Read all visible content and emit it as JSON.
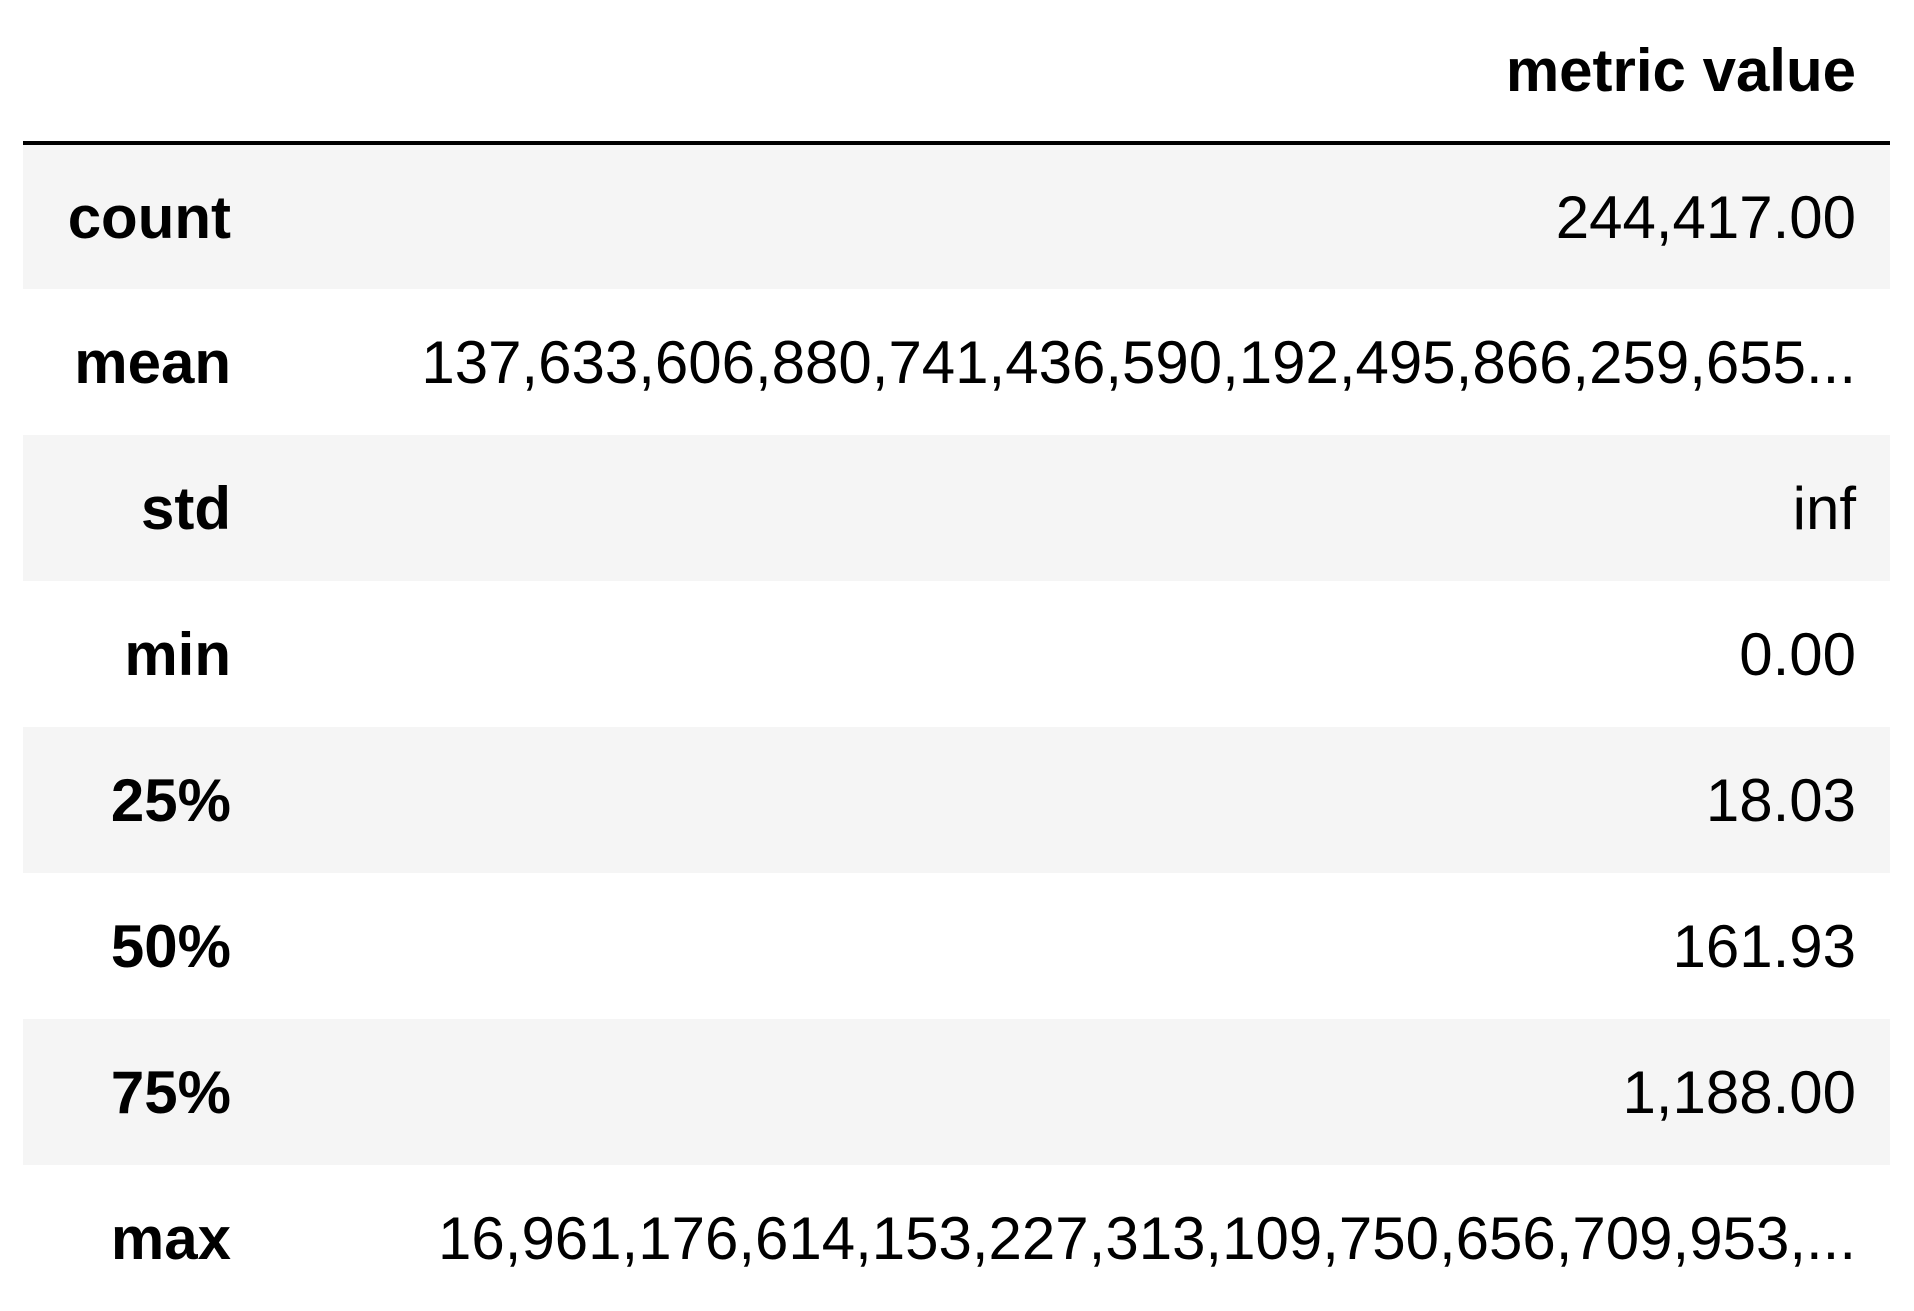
{
  "table": {
    "columns": [
      "",
      "metric value"
    ],
    "rows": [
      {
        "label": "count",
        "value": "244,417.00"
      },
      {
        "label": "mean",
        "value": "137,633,606,880,741,436,590,192,495,866,259,655..."
      },
      {
        "label": "std",
        "value": "inf"
      },
      {
        "label": "min",
        "value": "0.00"
      },
      {
        "label": "25%",
        "value": "18.03"
      },
      {
        "label": "50%",
        "value": "161.93"
      },
      {
        "label": "75%",
        "value": "1,188.00"
      },
      {
        "label": "max",
        "value": "16,961,176,614,153,227,313,109,750,656,709,953,..."
      }
    ]
  },
  "colors": {
    "row_stripe": "#f5f5f5",
    "row_plain": "#ffffff",
    "header_rule": "#000000",
    "text": "#000000"
  }
}
